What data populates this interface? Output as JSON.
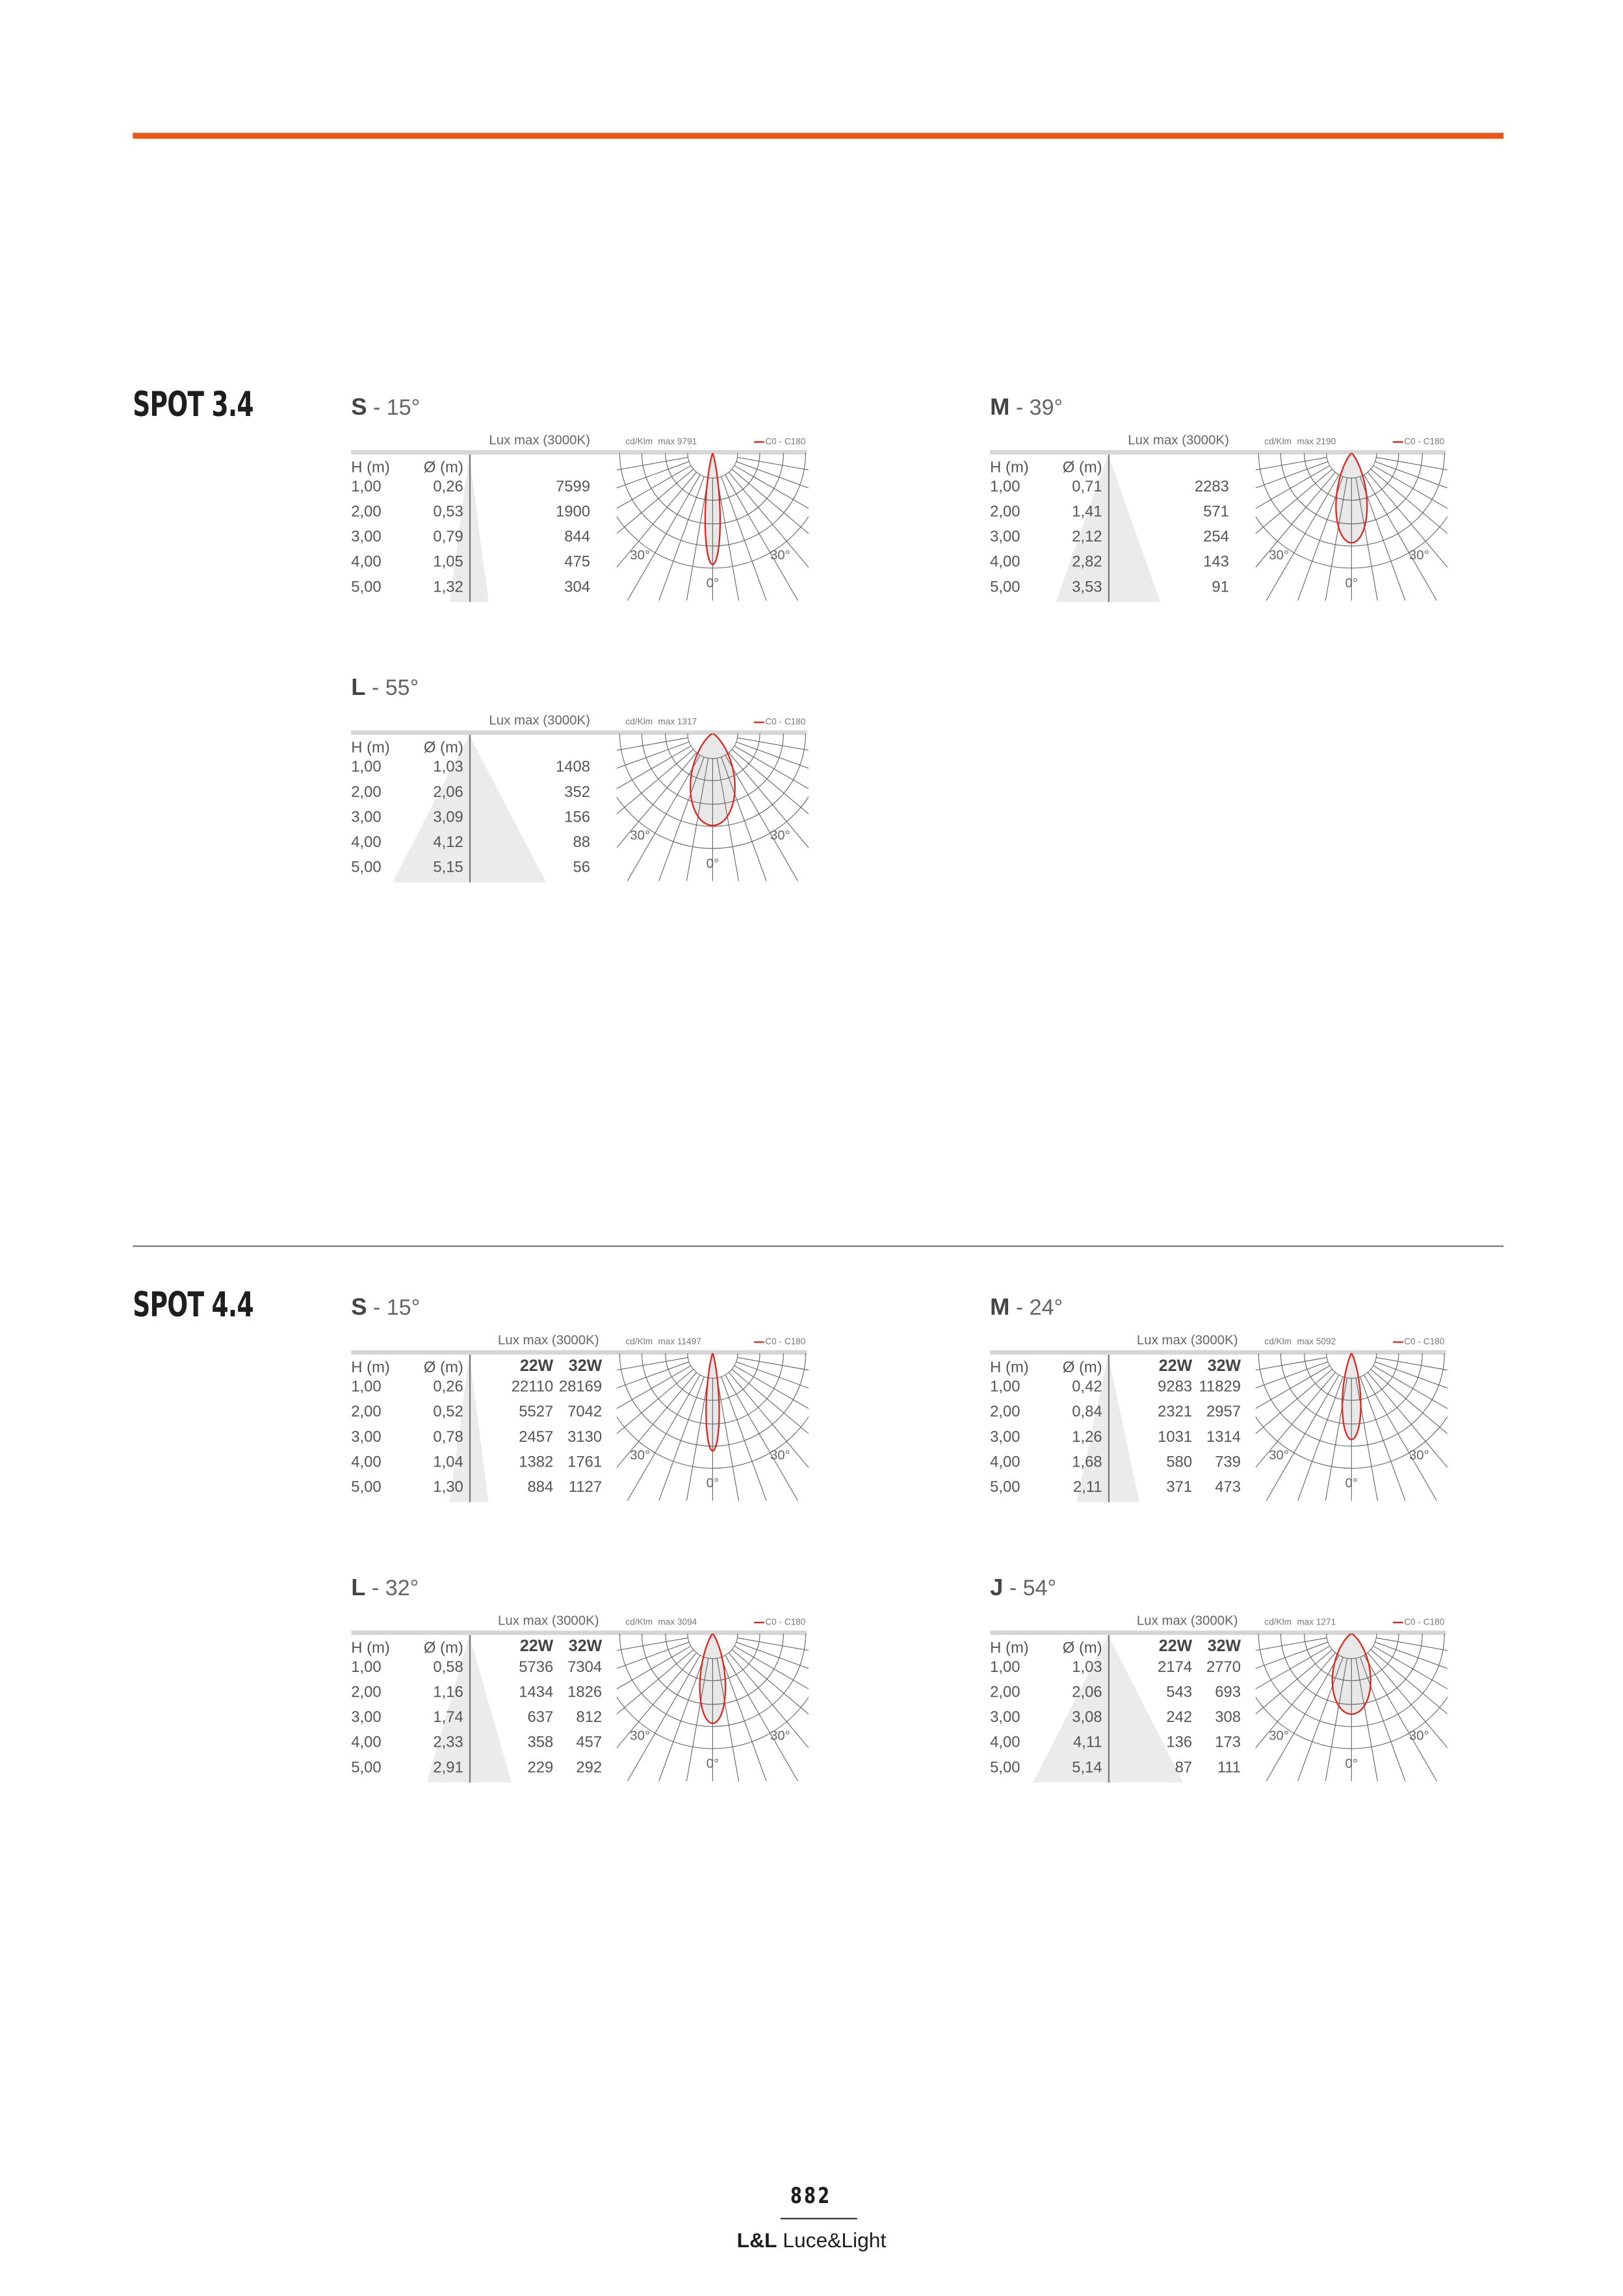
{
  "header": {
    "accent_color": "#e8581c"
  },
  "colors": {
    "curve": "#e2231a",
    "fill": "#e8e8e8",
    "grid": "#666666"
  },
  "sections": [
    {
      "title": "SPOT 3.4",
      "blocks": [
        {
          "code": "S",
          "angle": " - 15°",
          "beam_deg": 15,
          "lux_header": "Lux max (3000K)",
          "unit": "cd/Klm",
          "max": "max 9791",
          "legend": "C0 - C180",
          "col_h": "H (m)",
          "col_d": "Ø (m)",
          "watts": [],
          "rows": [
            {
              "h": "1,00",
              "d": "0,26",
              "lux": [
                "7599"
              ]
            },
            {
              "h": "2,00",
              "d": "0,53",
              "lux": [
                "1900"
              ]
            },
            {
              "h": "3,00",
              "d": "0,79",
              "lux": [
                "844"
              ]
            },
            {
              "h": "4,00",
              "d": "1,05",
              "lux": [
                "475"
              ]
            },
            {
              "h": "5,00",
              "d": "1,32",
              "lux": [
                "304"
              ]
            }
          ],
          "labels": {
            "left": "30°",
            "right": "30°",
            "bottom": "0°"
          }
        },
        {
          "code": "M",
          "angle": " - 39°",
          "beam_deg": 39,
          "lux_header": "Lux max (3000K)",
          "unit": "cd/Klm",
          "max": "max 2190",
          "legend": "C0 - C180",
          "col_h": "H (m)",
          "col_d": "Ø (m)",
          "watts": [],
          "rows": [
            {
              "h": "1,00",
              "d": "0,71",
              "lux": [
                "2283"
              ]
            },
            {
              "h": "2,00",
              "d": "1,41",
              "lux": [
                "571"
              ]
            },
            {
              "h": "3,00",
              "d": "2,12",
              "lux": [
                "254"
              ]
            },
            {
              "h": "4,00",
              "d": "2,82",
              "lux": [
                "143"
              ]
            },
            {
              "h": "5,00",
              "d": "3,53",
              "lux": [
                "91"
              ]
            }
          ],
          "labels": {
            "left": "30°",
            "right": "30°",
            "bottom": "0°"
          }
        },
        {
          "code": "L",
          "angle": " - 55°",
          "beam_deg": 55,
          "lux_header": "Lux max (3000K)",
          "unit": "cd/Klm",
          "max": "max 1317",
          "legend": "C0 - C180",
          "col_h": "H (m)",
          "col_d": "Ø (m)",
          "watts": [],
          "rows": [
            {
              "h": "1,00",
              "d": "1,03",
              "lux": [
                "1408"
              ]
            },
            {
              "h": "2,00",
              "d": "2,06",
              "lux": [
                "352"
              ]
            },
            {
              "h": "3,00",
              "d": "3,09",
              "lux": [
                "156"
              ]
            },
            {
              "h": "4,00",
              "d": "4,12",
              "lux": [
                "88"
              ]
            },
            {
              "h": "5,00",
              "d": "5,15",
              "lux": [
                "56"
              ]
            }
          ],
          "labels": {
            "left": "30°",
            "right": "30°",
            "bottom": "0°"
          }
        }
      ]
    },
    {
      "title": "SPOT 4.4",
      "blocks": [
        {
          "code": "S",
          "angle": " - 15°",
          "beam_deg": 15,
          "lux_header": "Lux max (3000K)",
          "unit": "cd/Klm",
          "max": "max 11497",
          "legend": "C0 - C180",
          "col_h": "H (m)",
          "col_d": "Ø (m)",
          "watts": [
            "22W",
            "32W"
          ],
          "rows": [
            {
              "h": "1,00",
              "d": "0,26",
              "lux": [
                "22110",
                "28169"
              ]
            },
            {
              "h": "2,00",
              "d": "0,52",
              "lux": [
                "5527",
                "7042"
              ]
            },
            {
              "h": "3,00",
              "d": "0,78",
              "lux": [
                "2457",
                "3130"
              ]
            },
            {
              "h": "4,00",
              "d": "1,04",
              "lux": [
                "1382",
                "1761"
              ]
            },
            {
              "h": "5,00",
              "d": "1,30",
              "lux": [
                "884",
                "1127"
              ]
            }
          ],
          "labels": {
            "left": "30°",
            "right": "30°",
            "bottom": "0°"
          }
        },
        {
          "code": "M",
          "angle": " - 24°",
          "beam_deg": 24,
          "lux_header": "Lux max (3000K)",
          "unit": "cd/Klm",
          "max": "max 5092",
          "legend": "C0 - C180",
          "col_h": "H (m)",
          "col_d": "Ø (m)",
          "watts": [
            "22W",
            "32W"
          ],
          "rows": [
            {
              "h": "1,00",
              "d": "0,42",
              "lux": [
                "9283",
                "11829"
              ]
            },
            {
              "h": "2,00",
              "d": "0,84",
              "lux": [
                "2321",
                "2957"
              ]
            },
            {
              "h": "3,00",
              "d": "1,26",
              "lux": [
                "1031",
                "1314"
              ]
            },
            {
              "h": "4,00",
              "d": "1,68",
              "lux": [
                "580",
                "739"
              ]
            },
            {
              "h": "5,00",
              "d": "2,11",
              "lux": [
                "371",
                "473"
              ]
            }
          ],
          "labels": {
            "left": "30°",
            "right": "30°",
            "bottom": "0°"
          }
        },
        {
          "code": "L",
          "angle": " - 32°",
          "beam_deg": 32,
          "lux_header": "Lux max (3000K)",
          "unit": "cd/Klm",
          "max": "max 3094",
          "legend": "C0 - C180",
          "col_h": "H (m)",
          "col_d": "Ø (m)",
          "watts": [
            "22W",
            "32W"
          ],
          "rows": [
            {
              "h": "1,00",
              "d": "0,58",
              "lux": [
                "5736",
                "7304"
              ]
            },
            {
              "h": "2,00",
              "d": "1,16",
              "lux": [
                "1434",
                "1826"
              ]
            },
            {
              "h": "3,00",
              "d": "1,74",
              "lux": [
                "637",
                "812"
              ]
            },
            {
              "h": "4,00",
              "d": "2,33",
              "lux": [
                "358",
                "457"
              ]
            },
            {
              "h": "5,00",
              "d": "2,91",
              "lux": [
                "229",
                "292"
              ]
            }
          ],
          "labels": {
            "left": "30°",
            "right": "30°",
            "bottom": "0°"
          }
        },
        {
          "code": "J",
          "angle": " - 54°",
          "beam_deg": 54,
          "lux_header": "Lux max (3000K)",
          "unit": "cd/Klm",
          "max": "max 1271",
          "legend": "C0 - C180",
          "col_h": "H (m)",
          "col_d": "Ø (m)",
          "watts": [
            "22W",
            "32W"
          ],
          "rows": [
            {
              "h": "1,00",
              "d": "1,03",
              "lux": [
                "2174",
                "2770"
              ]
            },
            {
              "h": "2,00",
              "d": "2,06",
              "lux": [
                "543",
                "693"
              ]
            },
            {
              "h": "3,00",
              "d": "3,08",
              "lux": [
                "242",
                "308"
              ]
            },
            {
              "h": "4,00",
              "d": "4,11",
              "lux": [
                "136",
                "173"
              ]
            },
            {
              "h": "5,00",
              "d": "5,14",
              "lux": [
                "87",
                "111"
              ]
            }
          ],
          "labels": {
            "left": "30°",
            "right": "30°",
            "bottom": "0°"
          }
        }
      ]
    }
  ],
  "footer": {
    "page": "882",
    "brand_bold": "L&L",
    "brand": "Luce&Light"
  }
}
